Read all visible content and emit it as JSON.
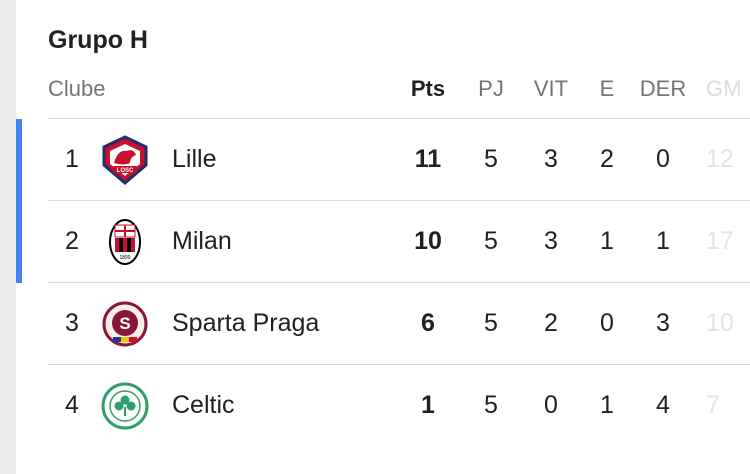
{
  "group": {
    "title": "Grupo H"
  },
  "columns": {
    "club": "Clube",
    "pts": "Pts",
    "pj": "PJ",
    "vit": "VIT",
    "e": "E",
    "der": "DER",
    "gm": "GM"
  },
  "accent_color": "#4285f4",
  "rows": [
    {
      "pos": "1",
      "name": "Lille",
      "pts": "11",
      "pj": "5",
      "vit": "3",
      "e": "2",
      "der": "0",
      "gm": "12",
      "logo_icon": "lille-crest-icon",
      "highlight": true
    },
    {
      "pos": "2",
      "name": "Milan",
      "pts": "10",
      "pj": "5",
      "vit": "3",
      "e": "1",
      "der": "1",
      "gm": "17",
      "logo_icon": "milan-crest-icon",
      "highlight": true
    },
    {
      "pos": "3",
      "name": "Sparta Praga",
      "pts": "6",
      "pj": "5",
      "vit": "2",
      "e": "0",
      "der": "3",
      "gm": "10",
      "logo_icon": "sparta-praha-crest-icon",
      "highlight": false
    },
    {
      "pos": "4",
      "name": "Celtic",
      "pts": "1",
      "pj": "5",
      "vit": "0",
      "e": "1",
      "der": "4",
      "gm": "7",
      "logo_icon": "celtic-crest-icon",
      "highlight": false
    }
  ]
}
